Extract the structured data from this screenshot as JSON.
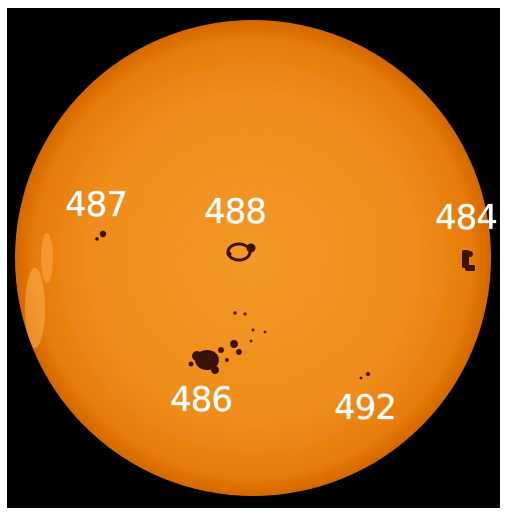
{
  "image": {
    "background_color": "#000000",
    "sun_colors": {
      "core": "#f99a2a",
      "mid": "#f08619",
      "limb": "#d6650a",
      "spot": "#3a120a"
    }
  },
  "sunspot_regions": [
    {
      "id": "region-487",
      "label": "487"
    },
    {
      "id": "region-488",
      "label": "488"
    },
    {
      "id": "region-484",
      "label": "484"
    },
    {
      "id": "region-486",
      "label": "486"
    },
    {
      "id": "region-492",
      "label": "492"
    }
  ]
}
